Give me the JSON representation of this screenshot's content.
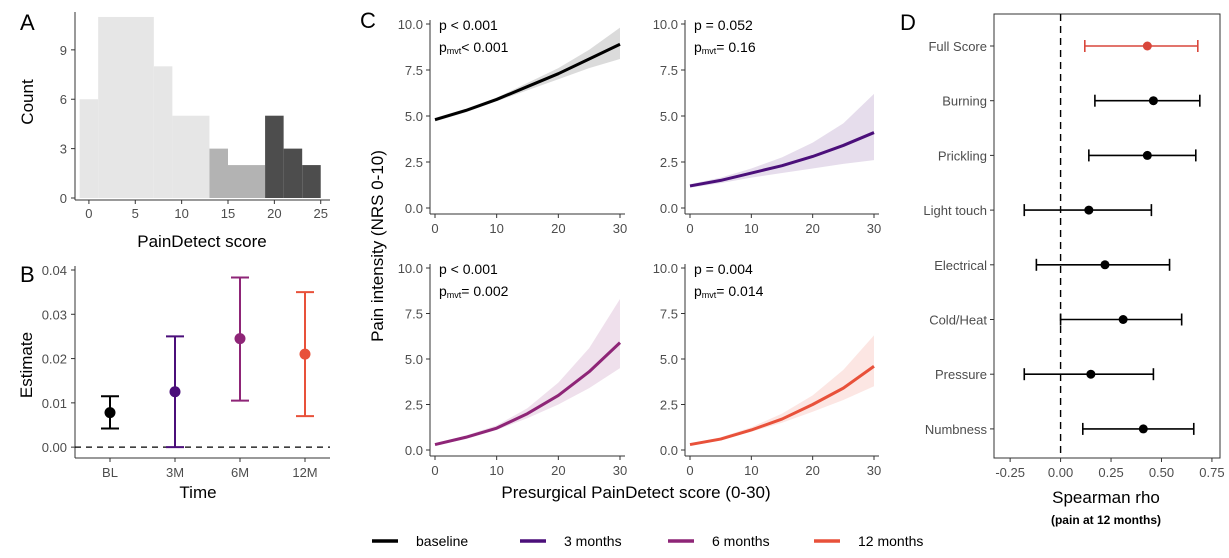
{
  "colors": {
    "baseline": "#000000",
    "m3": "#4b0f7a",
    "m6": "#8e2577",
    "m12": "#e8513a",
    "full_score": "#d9473b",
    "hist_light": "#e6e6e6",
    "hist_mid": "#b3b3b3",
    "hist_dark": "#4d4d4d"
  },
  "chart_data": [
    {
      "panel": "A",
      "type": "bar",
      "xlabel": "PainDetect score",
      "ylabel": "Count",
      "xlim": [
        -1.5,
        26
      ],
      "ylim": [
        0,
        11.3
      ],
      "x_ticks": [
        0,
        5,
        10,
        15,
        20,
        25
      ],
      "y_ticks": [
        0,
        3,
        6,
        9
      ],
      "bins": [
        {
          "x0": -1,
          "x1": 1,
          "count": 6,
          "group": "light"
        },
        {
          "x0": 1,
          "x1": 7,
          "count": 11,
          "group": "light"
        },
        {
          "x0": 7,
          "x1": 9,
          "count": 8,
          "group": "light"
        },
        {
          "x0": 9,
          "x1": 13,
          "count": 5,
          "group": "light"
        },
        {
          "x0": 13,
          "x1": 15,
          "count": 3,
          "group": "mid"
        },
        {
          "x0": 15,
          "x1": 19,
          "count": 2,
          "group": "mid"
        },
        {
          "x0": 19,
          "x1": 21,
          "count": 5,
          "group": "dark"
        },
        {
          "x0": 21,
          "x1": 23,
          "count": 3,
          "group": "dark"
        },
        {
          "x0": 23,
          "x1": 25,
          "count": 2,
          "group": "dark"
        }
      ]
    },
    {
      "panel": "B",
      "type": "scatter",
      "xlabel": "Time",
      "ylabel": "Estimate",
      "categories": [
        "BL",
        "3M",
        "6M",
        "12M"
      ],
      "ylim": [
        -0.002,
        0.04
      ],
      "y_ticks": [
        "0.00",
        "0.01",
        "0.02",
        "0.03",
        "0.04"
      ],
      "reference_line": 0,
      "points": [
        {
          "label": "BL",
          "estimate": 0.0078,
          "low": 0.0042,
          "high": 0.0115,
          "series": "baseline"
        },
        {
          "label": "3M",
          "estimate": 0.0125,
          "low": 0.0,
          "high": 0.025,
          "series": "m3"
        },
        {
          "label": "6M",
          "estimate": 0.0245,
          "low": 0.0105,
          "high": 0.0383,
          "series": "m6"
        },
        {
          "label": "12M",
          "estimate": 0.021,
          "low": 0.007,
          "high": 0.035,
          "series": "m12"
        }
      ]
    },
    {
      "panel": "C",
      "type": "line",
      "xlabel": "Presurgical PainDetect score (0-30)",
      "ylabel": "Pain intensity (NRS 0-10)",
      "xlim": [
        0,
        30
      ],
      "ylim": [
        0,
        10
      ],
      "x_ticks": [
        0,
        10,
        20,
        30
      ],
      "y_ticks": [
        "0.0",
        "2.5",
        "5.0",
        "7.5",
        "10.0"
      ],
      "subplots": [
        {
          "series": "baseline",
          "p": "p < 0.001",
          "pmvt_sub": "mvt",
          "pmvt": "< 0.001",
          "x": [
            0,
            5,
            10,
            15,
            20,
            25,
            30
          ],
          "y": [
            4.8,
            5.3,
            5.9,
            6.6,
            7.3,
            8.1,
            8.9
          ],
          "low": [
            4.7,
            5.2,
            5.8,
            6.4,
            7.0,
            7.6,
            8.1
          ],
          "high": [
            4.9,
            5.4,
            6.0,
            6.8,
            7.6,
            8.6,
            9.8
          ]
        },
        {
          "series": "m3",
          "p": "p = 0.052",
          "pmvt_sub": "mvt",
          "pmvt": "= 0.16",
          "x": [
            0,
            5,
            10,
            15,
            20,
            25,
            30
          ],
          "y": [
            1.2,
            1.5,
            1.9,
            2.3,
            2.8,
            3.4,
            4.1
          ],
          "low": [
            1.1,
            1.35,
            1.65,
            1.9,
            2.15,
            2.4,
            2.6
          ],
          "high": [
            1.3,
            1.65,
            2.15,
            2.75,
            3.55,
            4.6,
            6.2
          ]
        },
        {
          "series": "m6",
          "p": "p < 0.001",
          "pmvt_sub": "mvt",
          "pmvt": "= 0.002",
          "x": [
            0,
            5,
            10,
            15,
            20,
            25,
            30
          ],
          "y": [
            0.3,
            0.7,
            1.2,
            2.0,
            3.0,
            4.3,
            5.9
          ],
          "low": [
            0.25,
            0.6,
            1.1,
            1.75,
            2.5,
            3.4,
            4.5
          ],
          "high": [
            0.35,
            0.8,
            1.35,
            2.3,
            3.7,
            5.6,
            8.3
          ]
        },
        {
          "series": "m12",
          "p": "p = 0.004",
          "pmvt_sub": "mvt",
          "pmvt": "= 0.014",
          "x": [
            0,
            5,
            10,
            15,
            20,
            25,
            30
          ],
          "y": [
            0.3,
            0.6,
            1.1,
            1.7,
            2.5,
            3.4,
            4.6
          ],
          "low": [
            0.25,
            0.55,
            1.0,
            1.5,
            2.1,
            2.75,
            3.5
          ],
          "high": [
            0.35,
            0.7,
            1.25,
            2.0,
            3.0,
            4.4,
            6.3
          ]
        }
      ]
    },
    {
      "panel": "D",
      "type": "scatter",
      "xlabel": "Spearman rho",
      "subtitle": "(pain at 12 months)",
      "xlim": [
        -0.33,
        0.79
      ],
      "x_ticks": [
        "-0.25",
        "0.00",
        "0.25",
        "0.50",
        "0.75"
      ],
      "reference_line": 0,
      "items": [
        {
          "label": "Full Score",
          "rho": 0.43,
          "low": 0.12,
          "high": 0.68,
          "highlight": true
        },
        {
          "label": "Burning",
          "rho": 0.46,
          "low": 0.17,
          "high": 0.69
        },
        {
          "label": "Prickling",
          "rho": 0.43,
          "low": 0.14,
          "high": 0.67
        },
        {
          "label": "Light touch",
          "rho": 0.14,
          "low": -0.18,
          "high": 0.45
        },
        {
          "label": "Electrical",
          "rho": 0.22,
          "low": -0.12,
          "high": 0.54
        },
        {
          "label": "Cold/Heat",
          "rho": 0.31,
          "low": 0.0,
          "high": 0.6
        },
        {
          "label": "Pressure",
          "rho": 0.15,
          "low": -0.18,
          "high": 0.46
        },
        {
          "label": "Numbness",
          "rho": 0.41,
          "low": 0.11,
          "high": 0.66
        }
      ]
    }
  ],
  "panel_letters": [
    "A",
    "B",
    "C",
    "D"
  ],
  "legend": [
    {
      "label": "baseline",
      "series": "baseline"
    },
    {
      "label": "3 months",
      "series": "m3"
    },
    {
      "label": "6 months",
      "series": "m6"
    },
    {
      "label": "12 months",
      "series": "m12"
    }
  ]
}
